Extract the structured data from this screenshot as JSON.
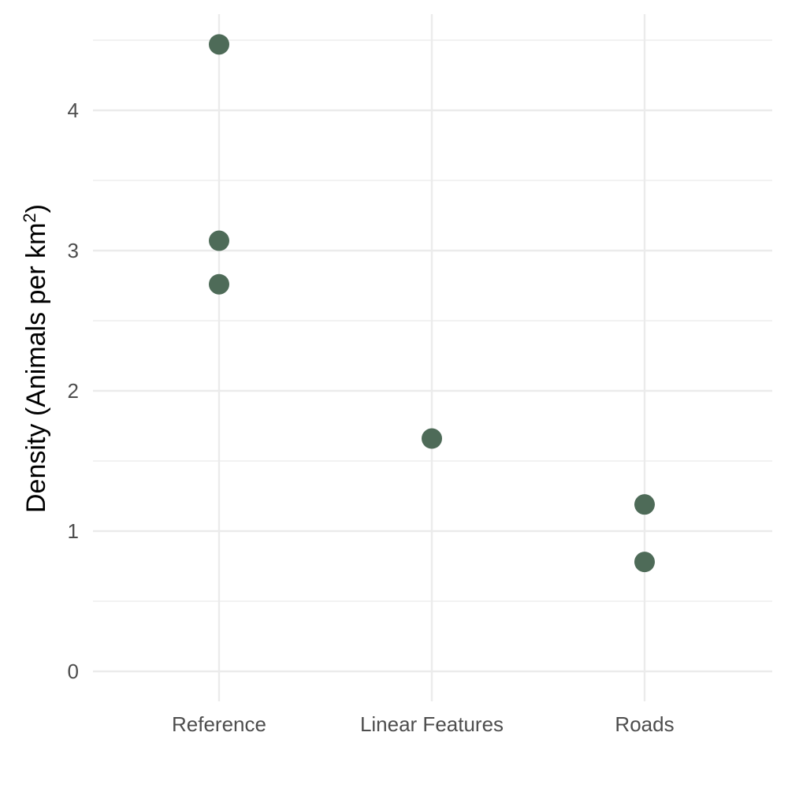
{
  "chart_data": {
    "type": "scatter",
    "title": "",
    "xlabel": "",
    "ylabel": "Density (Animals per km",
    "ylabel_superscript": "2",
    "ylabel_suffix": ")",
    "categories": [
      "Reference",
      "Linear Features",
      "Roads"
    ],
    "yticks": [
      "0",
      "1",
      "2",
      "3",
      "4"
    ],
    "ylim": [
      -0.16,
      4.7
    ],
    "grid": true,
    "legend": "none",
    "point_color": "#4e6b58",
    "points": [
      {
        "category": "Reference",
        "y": 4.47
      },
      {
        "category": "Reference",
        "y": 3.07
      },
      {
        "category": "Reference",
        "y": 2.76
      },
      {
        "category": "Linear Features",
        "y": 1.66
      },
      {
        "category": "Roads",
        "y": 1.19
      },
      {
        "category": "Roads",
        "y": 0.78
      }
    ]
  }
}
